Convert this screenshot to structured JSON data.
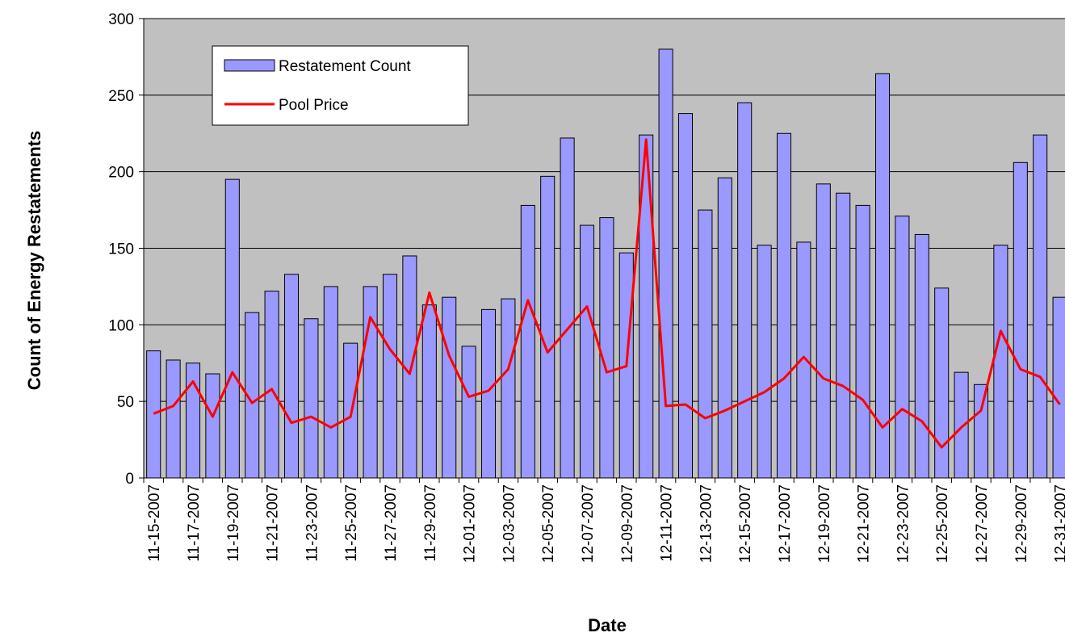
{
  "chart_data": {
    "type": "bar_line",
    "x_label": "Date",
    "y_label": "Count of Energy Restatements",
    "categories": [
      "11-15-2007",
      null,
      "11-17-2007",
      null,
      "11-19-2007",
      null,
      "11-21-2007",
      null,
      "11-23-2007",
      null,
      "11-25-2007",
      null,
      "11-27-2007",
      null,
      "11-29-2007",
      null,
      "12-01-2007",
      null,
      "12-03-2007",
      null,
      "12-05-2007",
      null,
      "12-07-2007",
      null,
      "12-09-2007",
      null,
      "12-11-2007",
      null,
      "12-13-2007",
      null,
      "12-15-2007",
      null,
      "12-17-2007",
      null,
      "12-19-2007",
      null,
      "12-21-2007",
      null,
      "12-23-2007",
      null,
      "12-25-2007",
      null,
      "12-27-2007",
      null,
      "12-29-2007",
      null,
      "12-31-2007"
    ],
    "series": [
      {
        "name": "Restatement Count",
        "type": "bar",
        "color": "#9999ff",
        "values": [
          83,
          77,
          75,
          68,
          195,
          108,
          122,
          133,
          104,
          125,
          88,
          125,
          133,
          145,
          113,
          118,
          86,
          110,
          117,
          178,
          197,
          222,
          165,
          170,
          147,
          224,
          280,
          238,
          175,
          196,
          245,
          152,
          225,
          154,
          192,
          186,
          178,
          264,
          171,
          159,
          124,
          69,
          61,
          152,
          206,
          224,
          118
        ]
      },
      {
        "name": "Pool Price",
        "type": "line",
        "color": "#ff0000",
        "values": [
          42,
          47,
          63,
          40,
          69,
          49,
          58,
          36,
          40,
          33,
          40,
          105,
          84,
          68,
          121,
          80,
          53,
          57,
          71,
          116,
          82,
          97,
          112,
          69,
          73,
          221,
          47,
          48,
          39,
          44,
          50,
          56,
          65,
          79,
          65,
          60,
          51,
          33,
          45,
          37,
          20,
          33,
          44,
          96,
          71,
          66,
          48
        ]
      }
    ],
    "ylim": [
      0,
      300
    ],
    "yticks": [
      0,
      50,
      100,
      150,
      200,
      250,
      300
    ],
    "grid": true,
    "legend": "upper left"
  }
}
